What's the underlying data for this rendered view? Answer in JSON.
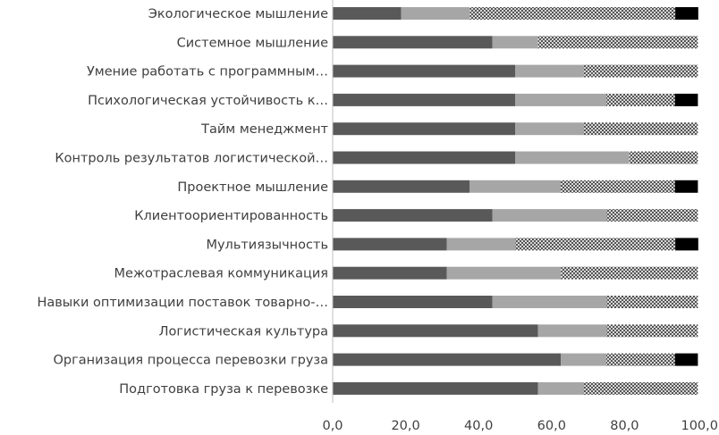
{
  "chart_data": {
    "type": "bar",
    "orientation": "horizontal",
    "stacked": true,
    "title": "",
    "xlabel": "",
    "ylabel": "",
    "xlim": [
      0,
      100
    ],
    "xticks": [
      "0,0",
      "20,0",
      "40,0",
      "60,0",
      "80,0",
      "100,0"
    ],
    "grid": false,
    "legend": "none",
    "categories": [
      "Экологическое мышление",
      "Системное мышление",
      "Умение работать с программным…",
      "Психологическая устойчивость к…",
      "Тайм менеджмент",
      "Контроль результатов логистической…",
      "Проектное мышление",
      "Клиентоориентированность",
      "Мультиязычность",
      "Межотраслевая коммуникация",
      "Навыки оптимизации поставок товарно-…",
      "Логистическая культура",
      "Организация процесса перевозки груза",
      "Подготовка груза к перевозке"
    ],
    "series": [
      {
        "color": "#595959",
        "pattern": "solid",
        "values": [
          18.8,
          43.8,
          50.0,
          50.0,
          50.0,
          50.0,
          37.5,
          43.8,
          31.3,
          31.3,
          43.8,
          56.3,
          62.5,
          56.3
        ]
      },
      {
        "color": "#a6a6a6",
        "pattern": "solid",
        "values": [
          18.8,
          12.5,
          18.8,
          25.0,
          18.8,
          31.3,
          25.0,
          31.3,
          18.8,
          31.3,
          31.3,
          18.8,
          12.5,
          12.5
        ]
      },
      {
        "color": "#7f7f7f",
        "pattern": "crosshatch",
        "values": [
          56.3,
          43.8,
          31.3,
          18.8,
          31.3,
          18.8,
          31.3,
          25.0,
          43.8,
          37.5,
          25.0,
          25.0,
          18.8,
          31.3
        ]
      },
      {
        "color": "#000000",
        "pattern": "solid",
        "values": [
          6.3,
          0,
          0,
          6.3,
          0,
          0,
          6.3,
          0,
          6.3,
          0,
          0,
          0,
          6.3,
          0
        ]
      }
    ]
  }
}
